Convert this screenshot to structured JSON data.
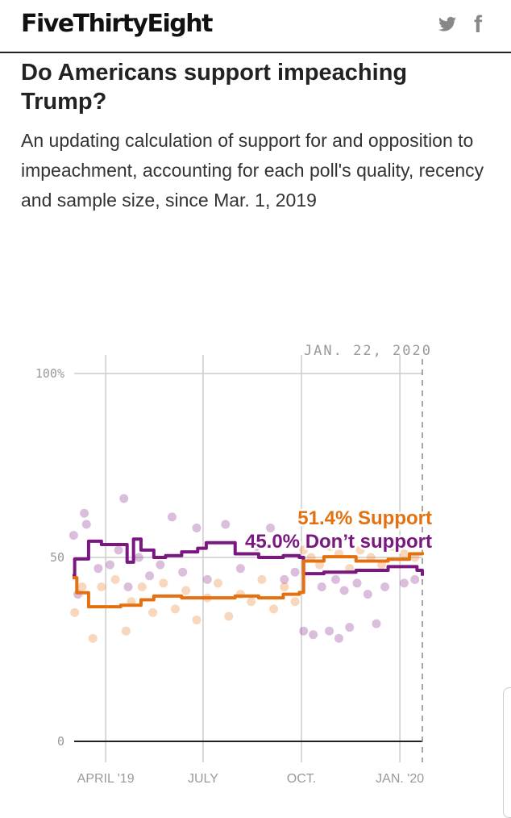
{
  "header": {
    "logo": "FiveThirtyEight",
    "icons": [
      "twitter-icon",
      "facebook-icon"
    ]
  },
  "title": "Do Americans support impeaching Trump?",
  "subtitle": "An updating calculation of support for and opposition to impeachment, accounting for each poll's quality, recency and sample size, since Mar. 1, 2019",
  "colors": {
    "support": "#e5700f",
    "oppose": "#7b1780"
  },
  "chart_data": {
    "type": "line",
    "date_marker": "JAN. 22, 2020",
    "xlim": [
      "2019-03-01",
      "2020-01-22"
    ],
    "ylim": [
      0,
      100
    ],
    "y_ticks": [
      {
        "v": 100,
        "label": "100%"
      },
      {
        "v": 50,
        "label": "50"
      },
      {
        "v": 0,
        "label": "0"
      }
    ],
    "x_ticks": [
      {
        "date": "2019-04-01",
        "label": "APRIL '19"
      },
      {
        "date": "2019-07-01",
        "label": "JULY"
      },
      {
        "date": "2019-10-01",
        "label": "OCT."
      },
      {
        "date": "2020-01-01",
        "label": "JAN. '20"
      }
    ],
    "grid": true,
    "series": [
      {
        "name": "Support",
        "label": "51.4% Support",
        "final": 51.4,
        "color": "#e5700f",
        "values": [
          [
            "2019-03-01",
            44.5
          ],
          [
            "2019-03-05",
            40.4
          ],
          [
            "2019-03-16",
            36.6
          ],
          [
            "2019-04-15",
            37
          ],
          [
            "2019-05-04",
            38.5
          ],
          [
            "2019-05-16",
            39.5
          ],
          [
            "2019-06-11",
            39
          ],
          [
            "2019-07-04",
            39
          ],
          [
            "2019-07-31",
            39.5
          ],
          [
            "2019-08-22",
            39
          ],
          [
            "2019-09-14",
            40
          ],
          [
            "2019-09-29",
            40.5
          ],
          [
            "2019-10-03",
            49
          ],
          [
            "2019-10-22",
            50.2
          ],
          [
            "2019-11-21",
            49
          ],
          [
            "2019-12-21",
            49.5
          ],
          [
            "2020-01-10",
            51
          ],
          [
            "2020-01-22",
            51.4
          ]
        ],
        "polls": [
          [
            "2019-03-03",
            35
          ],
          [
            "2019-03-10",
            42
          ],
          [
            "2019-03-20",
            28
          ],
          [
            "2019-03-28",
            42
          ],
          [
            "2019-04-10",
            44
          ],
          [
            "2019-04-20",
            30
          ],
          [
            "2019-04-25",
            38
          ],
          [
            "2019-05-05",
            42
          ],
          [
            "2019-05-15",
            35
          ],
          [
            "2019-05-25",
            43
          ],
          [
            "2019-06-05",
            36
          ],
          [
            "2019-06-15",
            41
          ],
          [
            "2019-06-25",
            33
          ],
          [
            "2019-07-05",
            39
          ],
          [
            "2019-07-15",
            43
          ],
          [
            "2019-07-25",
            34
          ],
          [
            "2019-08-05",
            40
          ],
          [
            "2019-08-15",
            38
          ],
          [
            "2019-08-25",
            44
          ],
          [
            "2019-09-05",
            36
          ],
          [
            "2019-09-15",
            42
          ],
          [
            "2019-09-25",
            38
          ],
          [
            "2019-10-03",
            52
          ],
          [
            "2019-10-10",
            50
          ],
          [
            "2019-10-18",
            48
          ],
          [
            "2019-10-28",
            53
          ],
          [
            "2019-11-05",
            51
          ],
          [
            "2019-11-15",
            47
          ],
          [
            "2019-11-25",
            52
          ],
          [
            "2019-12-05",
            50
          ],
          [
            "2019-12-15",
            48
          ],
          [
            "2019-12-25",
            53
          ],
          [
            "2020-01-05",
            51
          ],
          [
            "2020-01-15",
            50
          ]
        ]
      },
      {
        "name": "Don't support",
        "label": "45.0% Don’t support",
        "final": 45.0,
        "color": "#7b1780",
        "values": [
          [
            "2019-03-01",
            45
          ],
          [
            "2019-03-03",
            49.6
          ],
          [
            "2019-03-16",
            54.4
          ],
          [
            "2019-03-28",
            53.5
          ],
          [
            "2019-04-19",
            53.5
          ],
          [
            "2019-04-21",
            48.7
          ],
          [
            "2019-04-27",
            55
          ],
          [
            "2019-05-04",
            52
          ],
          [
            "2019-05-16",
            50
          ],
          [
            "2019-05-27",
            50.5
          ],
          [
            "2019-06-11",
            51.5
          ],
          [
            "2019-06-26",
            52.5
          ],
          [
            "2019-07-04",
            54
          ],
          [
            "2019-07-31",
            51
          ],
          [
            "2019-08-22",
            50
          ],
          [
            "2019-09-14",
            50.5
          ],
          [
            "2019-09-29",
            50
          ],
          [
            "2019-10-03",
            45.6
          ],
          [
            "2019-10-22",
            46
          ],
          [
            "2019-11-21",
            46.5
          ],
          [
            "2019-12-21",
            47.5
          ],
          [
            "2020-01-17",
            46.5
          ],
          [
            "2020-01-22",
            45.0
          ]
        ],
        "polls": [
          [
            "2019-03-02",
            56
          ],
          [
            "2019-03-06",
            40
          ],
          [
            "2019-03-12",
            62
          ],
          [
            "2019-03-14",
            59
          ],
          [
            "2019-03-25",
            47
          ],
          [
            "2019-04-05",
            48
          ],
          [
            "2019-04-13",
            52
          ],
          [
            "2019-04-18",
            66
          ],
          [
            "2019-04-22",
            42
          ],
          [
            "2019-05-02",
            50
          ],
          [
            "2019-05-12",
            45
          ],
          [
            "2019-05-22",
            48
          ],
          [
            "2019-06-02",
            61
          ],
          [
            "2019-06-12",
            46
          ],
          [
            "2019-06-25",
            58
          ],
          [
            "2019-07-05",
            44
          ],
          [
            "2019-07-22",
            59
          ],
          [
            "2019-08-05",
            47
          ],
          [
            "2019-08-20",
            53
          ],
          [
            "2019-09-02",
            58
          ],
          [
            "2019-09-15",
            44
          ],
          [
            "2019-09-25",
            46
          ],
          [
            "2019-10-03",
            30
          ],
          [
            "2019-10-12",
            29
          ],
          [
            "2019-10-20",
            42
          ],
          [
            "2019-10-27",
            30
          ],
          [
            "2019-11-02",
            44
          ],
          [
            "2019-11-05",
            28
          ],
          [
            "2019-11-10",
            41
          ],
          [
            "2019-11-15",
            31
          ],
          [
            "2019-11-22",
            43
          ],
          [
            "2019-12-02",
            40
          ],
          [
            "2019-12-10",
            32
          ],
          [
            "2019-12-18",
            42
          ],
          [
            "2020-01-05",
            43
          ],
          [
            "2020-01-15",
            44
          ]
        ]
      }
    ]
  }
}
